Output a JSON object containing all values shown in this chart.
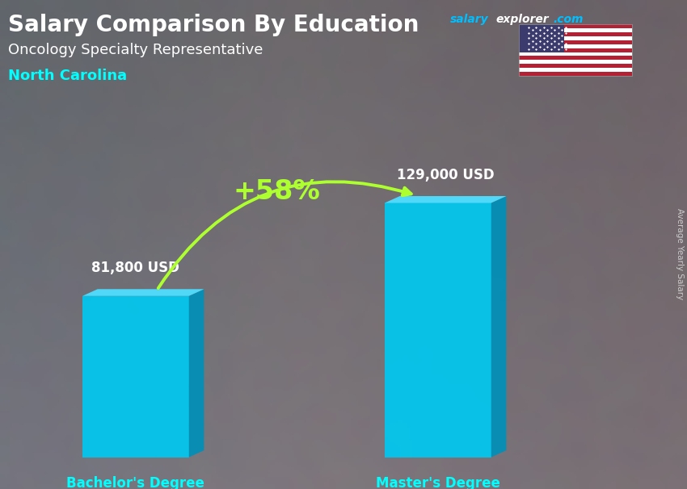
{
  "title": "Salary Comparison By Education",
  "subtitle": "Oncology Specialty Representative",
  "location": "North Carolina",
  "ylabel": "Average Yearly Salary",
  "categories": [
    "Bachelor's Degree",
    "Master's Degree"
  ],
  "values": [
    81800,
    129000
  ],
  "value_labels": [
    "81,800 USD",
    "129,000 USD"
  ],
  "pct_change": "+58%",
  "bar_color_front": "#00C8F0",
  "bar_color_side": "#0090B8",
  "bar_color_top": "#50DEFF",
  "bg_overlay_color": "#4a5a6a",
  "title_color": "#FFFFFF",
  "subtitle_color": "#FFFFFF",
  "location_color": "#00FFFF",
  "label_color": "#00FFFF",
  "value_label_color": "#FFFFFF",
  "pct_color": "#ADFF2F",
  "arrow_color": "#ADFF2F",
  "site_salary_color": "#00BFFF",
  "site_explorer_color": "#FFFFFF",
  "site_com_color": "#00BFFF",
  "flag_red": "#B22234",
  "flag_blue": "#3C3B6E",
  "flag_white": "#FFFFFF",
  "figsize": [
    8.5,
    6.06
  ],
  "dpi": 100
}
